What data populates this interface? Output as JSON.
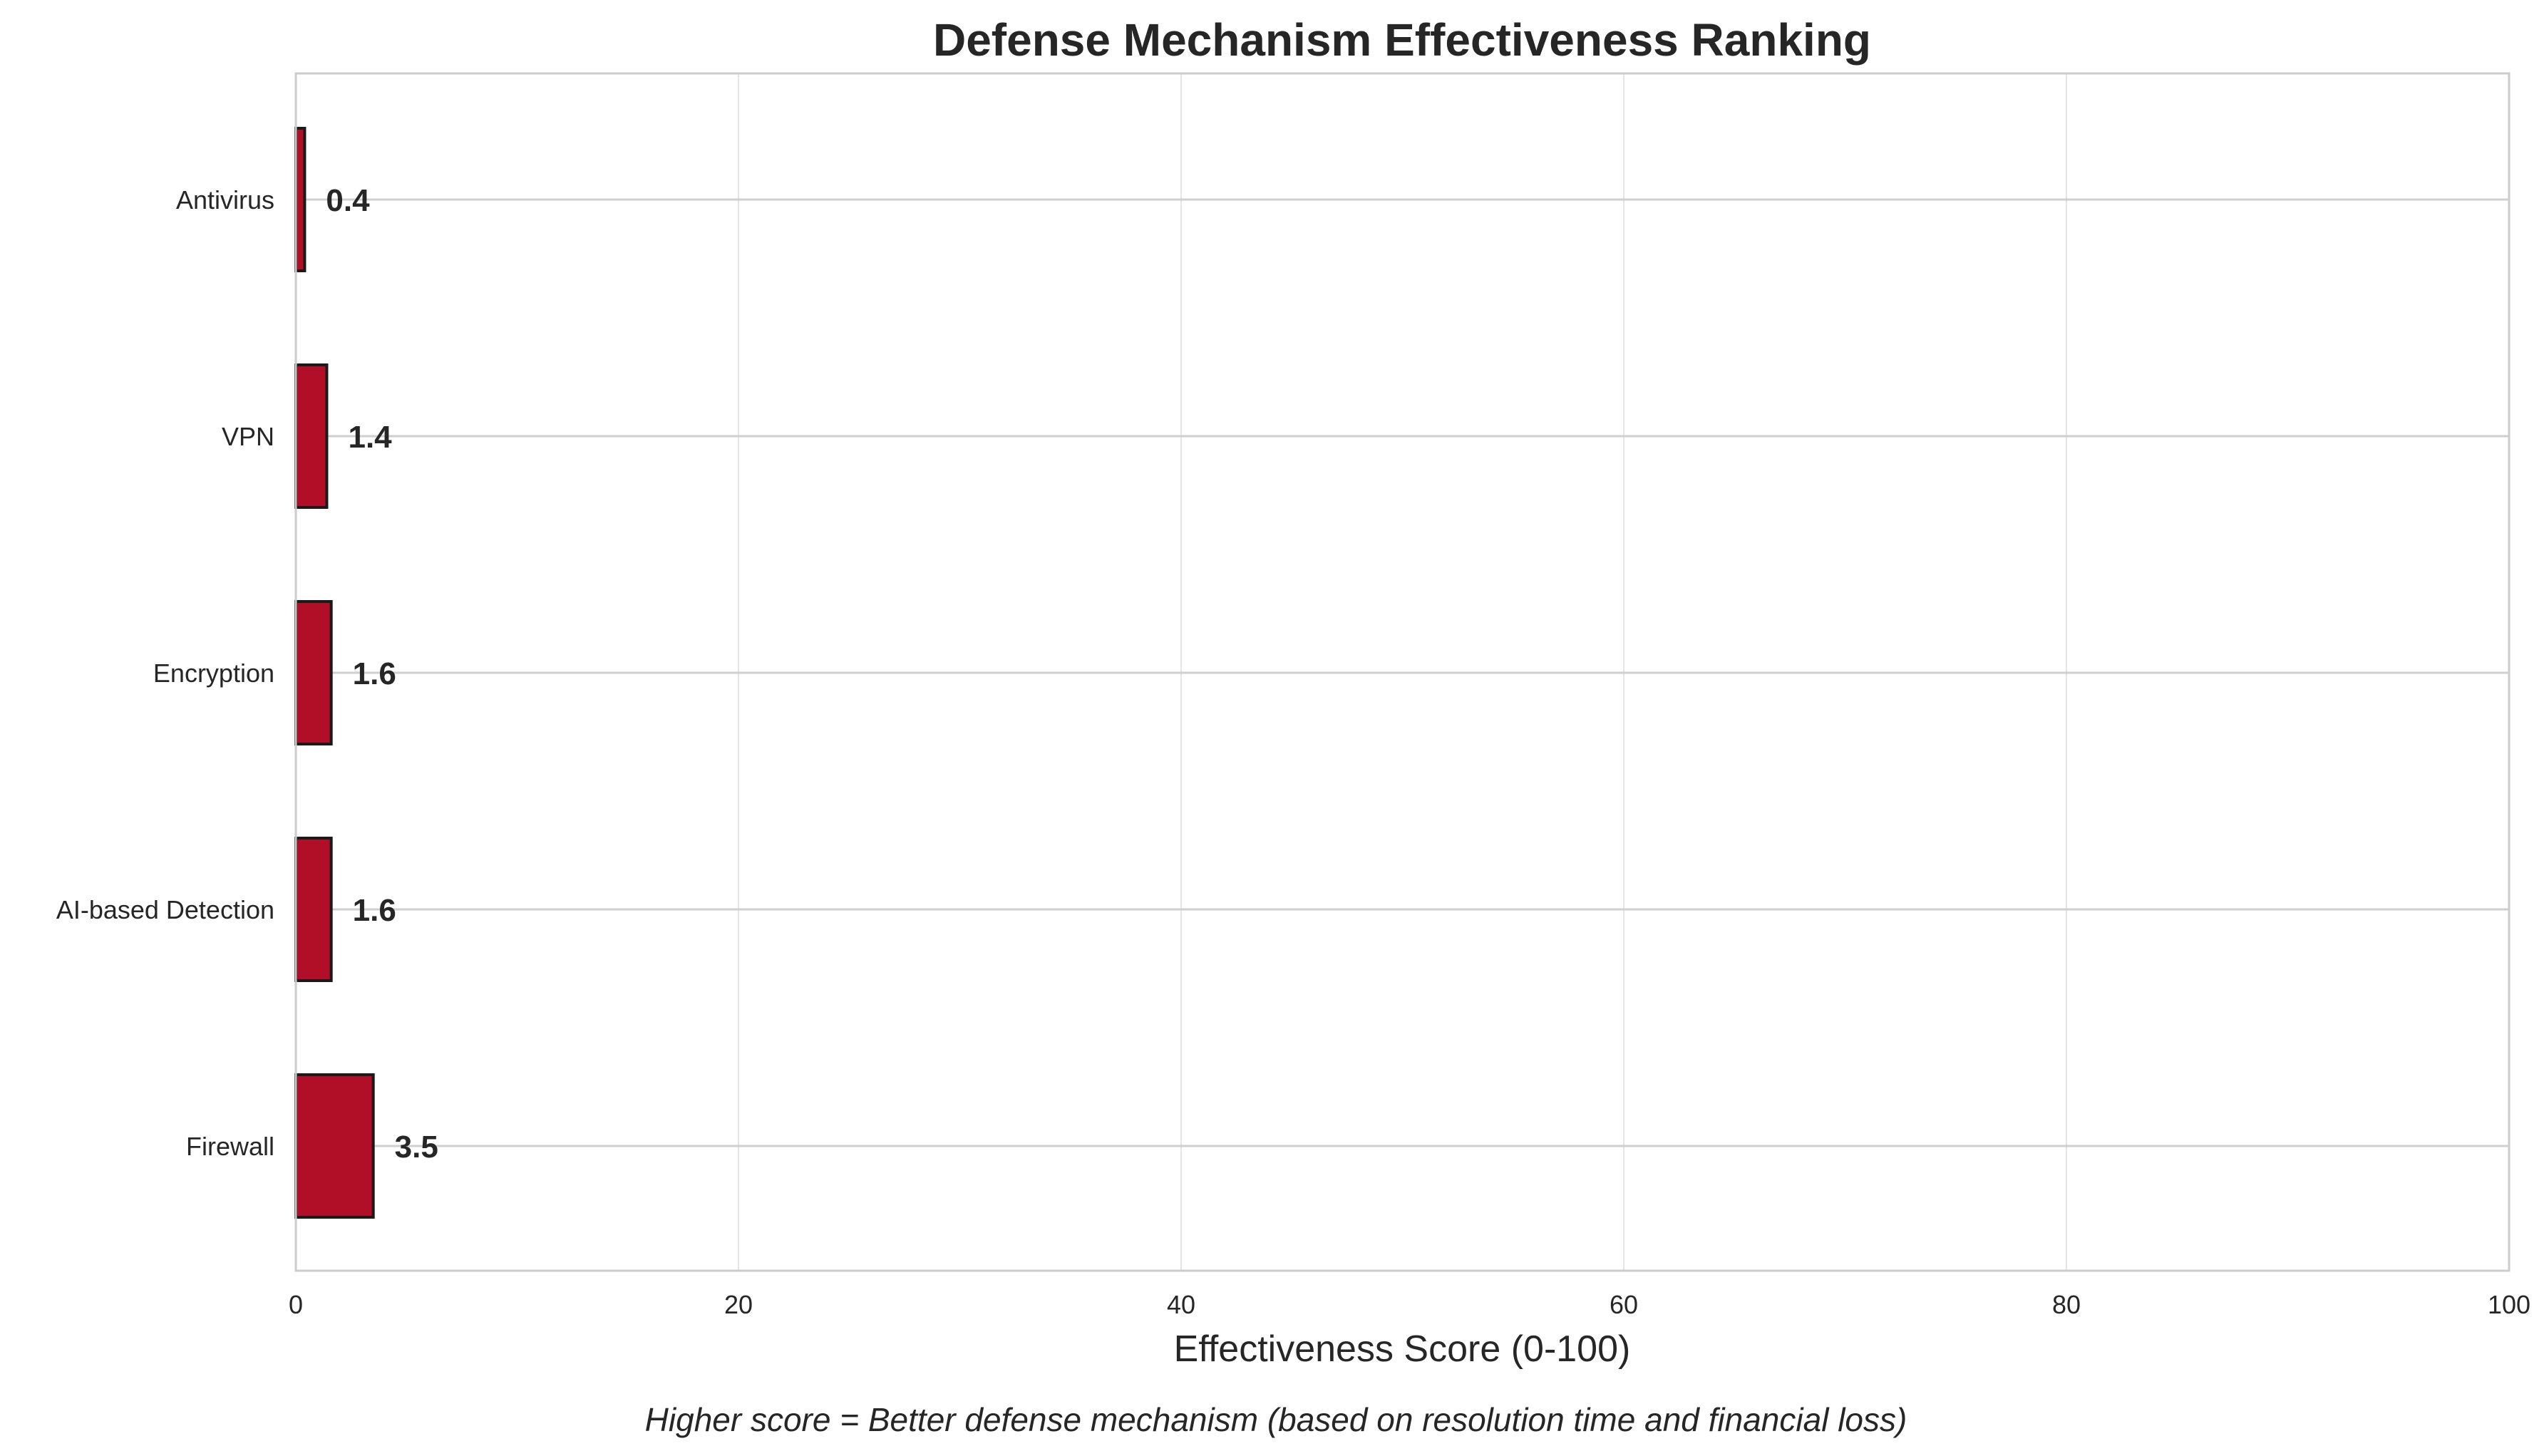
{
  "chart_data": {
    "type": "bar",
    "orientation": "horizontal",
    "title": "Defense Mechanism Effectiveness Ranking",
    "xlabel": "Effectiveness Score (0-100)",
    "ylabel": "",
    "caption": "Higher score = Better defense mechanism (based on resolution time and financial loss)",
    "categories": [
      "Antivirus",
      "VPN",
      "Encryption",
      "AI-based Detection",
      "Firewall"
    ],
    "values": [
      0.4,
      1.4,
      1.6,
      1.6,
      3.5
    ],
    "value_labels": [
      "0.4",
      "1.4",
      "1.6",
      "1.6",
      "3.5"
    ],
    "xlim": [
      0,
      100
    ],
    "xticks": [
      "0",
      "20",
      "40",
      "60",
      "80",
      "100"
    ],
    "grid": true,
    "legend": "none",
    "colors": {
      "bar_fill": "#b10f28",
      "bar_edge": "#1a1a1a",
      "grid": "#e5e5e5",
      "axis": "#cccccc",
      "text": "#262626"
    }
  }
}
